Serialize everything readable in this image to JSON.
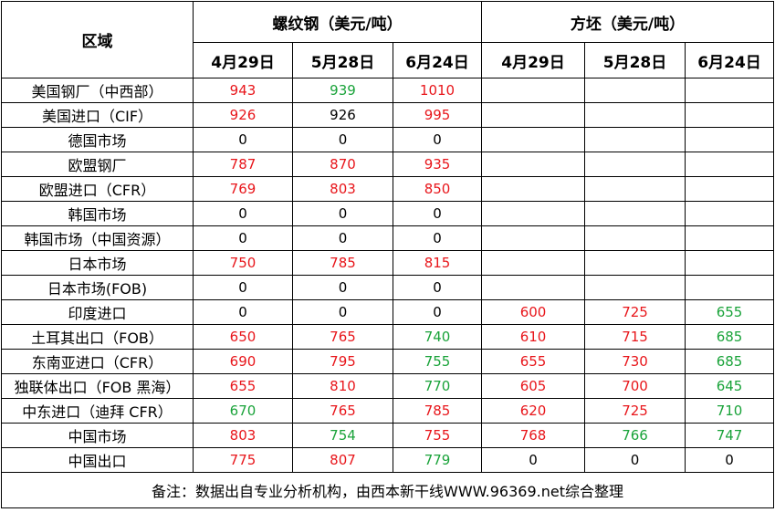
{
  "table": {
    "header": {
      "region": "区域",
      "groups": [
        "螺纹钢（美元/吨）",
        "方坯（美元/吨）"
      ],
      "dates": [
        "4月29日",
        "5月28日",
        "6月24日",
        "4月29日",
        "5月28日",
        "6月24日"
      ]
    },
    "rows": [
      {
        "region": "美国钢厂（中西部）",
        "values": [
          943,
          939,
          1010
        ],
        "colors": [
          "#e8161b",
          "#1aa33a",
          "#e8161b"
        ]
      },
      {
        "region": "美国进口（CIF）",
        "values": [
          926,
          926,
          995
        ],
        "colors": [
          "#e8161b",
          "#000000",
          "#e8161b"
        ]
      },
      {
        "region": "德国市场",
        "values": [
          0,
          0,
          0
        ],
        "colors": [
          "#000000",
          "#000000",
          "#000000"
        ]
      },
      {
        "region": "欧盟钢厂",
        "values": [
          787,
          870,
          935
        ],
        "colors": [
          "#e8161b",
          "#e8161b",
          "#e8161b"
        ]
      },
      {
        "region": "欧盟进口（CFR）",
        "values": [
          769,
          803,
          850
        ],
        "colors": [
          "#e8161b",
          "#e8161b",
          "#e8161b"
        ]
      },
      {
        "region": "韩国市场",
        "values": [
          0,
          0,
          0
        ],
        "colors": [
          "#000000",
          "#000000",
          "#000000"
        ]
      },
      {
        "region": "韩国市场（中国资源）",
        "values": [
          0,
          0,
          0
        ],
        "colors": [
          "#000000",
          "#000000",
          "#000000"
        ]
      },
      {
        "region": "日本市场",
        "values": [
          750,
          785,
          815
        ],
        "colors": [
          "#e8161b",
          "#e8161b",
          "#e8161b"
        ]
      },
      {
        "region": "日本市场(FOB)",
        "values": [
          0,
          0,
          0
        ],
        "colors": [
          "#000000",
          "#000000",
          "#000000"
        ]
      },
      {
        "region": "印度进口",
        "values": [
          0,
          0,
          0,
          600,
          725,
          655
        ],
        "colors": [
          "#000000",
          "#000000",
          "#000000",
          "#e8161b",
          "#e8161b",
          "#1aa33a"
        ]
      },
      {
        "region": "土耳其出口（FOB）",
        "values": [
          650,
          765,
          740,
          610,
          715,
          685
        ],
        "colors": [
          "#e8161b",
          "#e8161b",
          "#1aa33a",
          "#e8161b",
          "#e8161b",
          "#1aa33a"
        ]
      },
      {
        "region": "东南亚进口（CFR）",
        "values": [
          690,
          795,
          755,
          655,
          730,
          685
        ],
        "colors": [
          "#e8161b",
          "#e8161b",
          "#1aa33a",
          "#e8161b",
          "#e8161b",
          "#1aa33a"
        ]
      },
      {
        "region": "独联体出口（FOB 黑海）",
        "values": [
          655,
          810,
          770,
          605,
          700,
          645
        ],
        "colors": [
          "#e8161b",
          "#e8161b",
          "#1aa33a",
          "#e8161b",
          "#e8161b",
          "#1aa33a"
        ]
      },
      {
        "region": "中东进口（迪拜 CFR）",
        "values": [
          670,
          765,
          785,
          620,
          725,
          710
        ],
        "colors": [
          "#1aa33a",
          "#e8161b",
          "#e8161b",
          "#e8161b",
          "#e8161b",
          "#1aa33a"
        ]
      },
      {
        "region": "中国市场",
        "values": [
          803,
          754,
          755,
          768,
          766,
          747
        ],
        "colors": [
          "#e8161b",
          "#1aa33a",
          "#e8161b",
          "#e8161b",
          "#1aa33a",
          "#1aa33a"
        ]
      },
      {
        "region": "中国出口",
        "values": [
          775,
          807,
          779,
          0,
          0,
          0
        ],
        "colors": [
          "#e8161b",
          "#e8161b",
          "#1aa33a",
          "#000000",
          "#000000",
          "#000000"
        ]
      }
    ],
    "note": "备注：数据出自专业分析机构，由西本新干线WWW.96369.net综合整理"
  }
}
